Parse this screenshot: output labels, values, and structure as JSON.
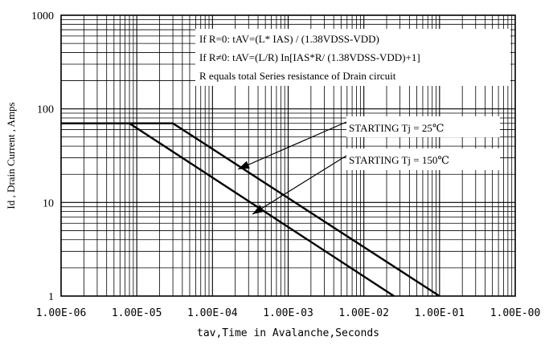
{
  "chart_data": {
    "type": "line",
    "xlabel": "tav,Time in Avalanche,Seconds",
    "ylabel": "Id , Drain Current , Amps",
    "xscale": "log",
    "yscale": "log",
    "xlim": [
      1e-06,
      1
    ],
    "ylim": [
      1,
      1000
    ],
    "grid": true,
    "x_tick_labels": [
      "1.00E-06",
      "1.00E-05",
      "1.00E-04",
      "1.00E-03",
      "1.00E-02",
      "1.00E-01",
      "1.00E-00"
    ],
    "y_tick_labels": [
      "1",
      "10",
      "100",
      "1000"
    ],
    "annotations": [
      "If R=0: tAV=(L* IAS) / (1.38VDSS-VDD)",
      "If R≠0: tAV=(L/R) In[IAS*R/ (1.38VDSS-VDD)+1]",
      "R equals total Series resistance of Drain circuit"
    ],
    "series": [
      {
        "name": "STARTING Tj = 25℃",
        "x": [
          1e-06,
          3e-05,
          0.1
        ],
        "y": [
          70,
          70,
          1
        ]
      },
      {
        "name": "STARTING Tj = 150℃",
        "x": [
          1e-06,
          8e-06,
          0.025
        ],
        "y": [
          70,
          70,
          1
        ]
      }
    ]
  }
}
